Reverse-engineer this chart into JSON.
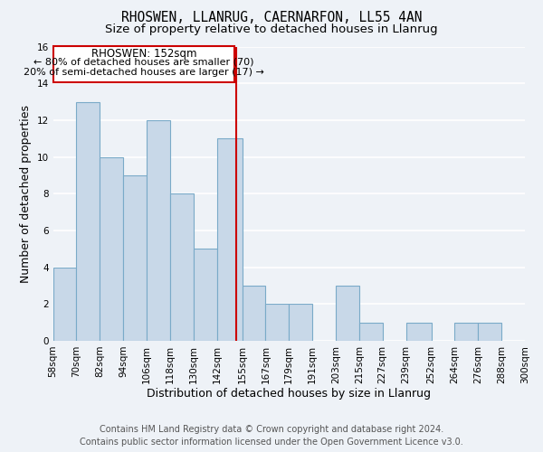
{
  "title": "RHOSWEN, LLANRUG, CAERNARFON, LL55 4AN",
  "subtitle": "Size of property relative to detached houses in Llanrug",
  "xlabel": "Distribution of detached houses by size in Llanrug",
  "ylabel": "Number of detached properties",
  "bar_color": "#c8d8e8",
  "bar_edge_color": "#7aaac8",
  "bin_edges": [
    58,
    70,
    82,
    94,
    106,
    118,
    130,
    142,
    155,
    167,
    179,
    191,
    203,
    215,
    227,
    239,
    252,
    264,
    276,
    288,
    300
  ],
  "bin_labels": [
    "58sqm",
    "70sqm",
    "82sqm",
    "94sqm",
    "106sqm",
    "118sqm",
    "130sqm",
    "142sqm",
    "155sqm",
    "167sqm",
    "179sqm",
    "191sqm",
    "203sqm",
    "215sqm",
    "227sqm",
    "239sqm",
    "252sqm",
    "264sqm",
    "276sqm",
    "288sqm",
    "300sqm"
  ],
  "counts": [
    4,
    13,
    10,
    9,
    12,
    8,
    5,
    11,
    3,
    2,
    2,
    0,
    3,
    1,
    0,
    1,
    0,
    1,
    1,
    0
  ],
  "vline_x": 152,
  "vline_color": "#cc0000",
  "annotation_title": "RHOSWEN: 152sqm",
  "annotation_line1": "← 80% of detached houses are smaller (70)",
  "annotation_line2": "20% of semi-detached houses are larger (17) →",
  "annotation_box_color": "#ffffff",
  "annotation_box_edge": "#cc0000",
  "ylim": [
    0,
    16
  ],
  "yticks": [
    0,
    2,
    4,
    6,
    8,
    10,
    12,
    14,
    16
  ],
  "footer_line1": "Contains HM Land Registry data © Crown copyright and database right 2024.",
  "footer_line2": "Contains public sector information licensed under the Open Government Licence v3.0.",
  "background_color": "#eef2f7",
  "grid_color": "#ffffff",
  "title_fontsize": 10.5,
  "subtitle_fontsize": 9.5,
  "axis_label_fontsize": 9,
  "tick_fontsize": 7.5,
  "footer_fontsize": 7,
  "ann_title_fontsize": 8.5,
  "ann_body_fontsize": 8
}
